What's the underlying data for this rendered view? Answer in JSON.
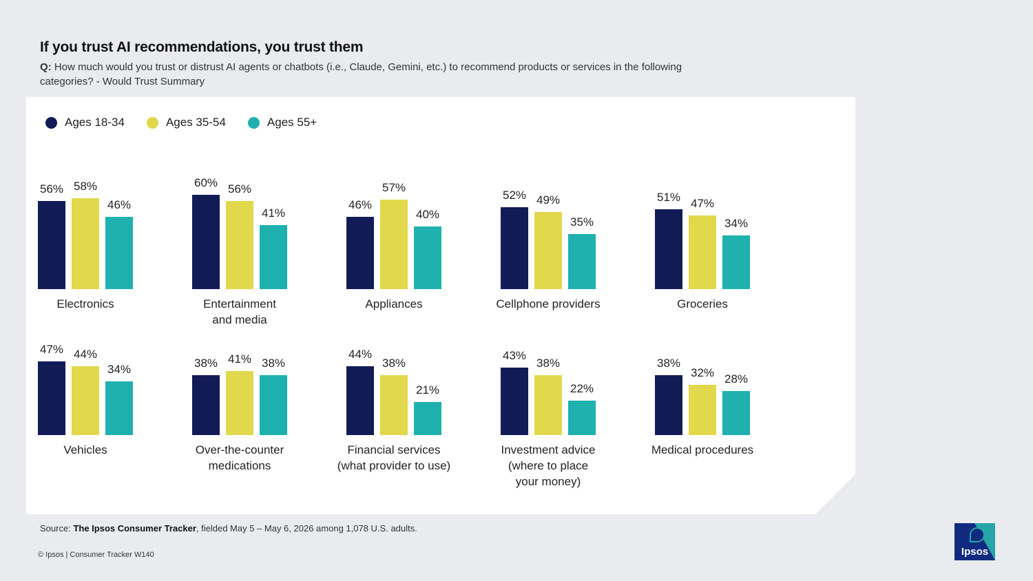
{
  "header": {
    "title": "If you trust AI recommendations, you trust them",
    "question_prefix": "Q:",
    "question_text": "How much would you trust or distrust AI agents or chatbots (i.e., Claude, Gemini, etc.) to recommend products or services in the following categories? - Would Trust Summary"
  },
  "colors": {
    "s1": "#131b57",
    "s2": "#e1d84b",
    "s3": "#1eb1ae"
  },
  "chart_data": {
    "type": "bar",
    "value_suffix": "%",
    "ylim": [
      0,
      60
    ],
    "legend_position": "top-left",
    "series": [
      {
        "name": "Ages 18-34",
        "color": "#131b57"
      },
      {
        "name": "Ages 35-54",
        "color": "#e1d84b"
      },
      {
        "name": "Ages 55+",
        "color": "#1eb1ae"
      }
    ],
    "categories": [
      {
        "label": "Electronics",
        "values": [
          56,
          58,
          46
        ]
      },
      {
        "label": "Entertainment\nand media",
        "values": [
          60,
          56,
          41
        ]
      },
      {
        "label": "Appliances",
        "values": [
          46,
          57,
          40
        ]
      },
      {
        "label": "Cellphone providers",
        "values": [
          52,
          49,
          35
        ]
      },
      {
        "label": "Groceries",
        "values": [
          51,
          47,
          34
        ]
      },
      {
        "label": "Vehicles",
        "values": [
          47,
          44,
          34
        ]
      },
      {
        "label": "Over-the-counter\nmedications",
        "values": [
          38,
          41,
          38
        ]
      },
      {
        "label": "Financial services\n(what provider to use)",
        "values": [
          44,
          38,
          21
        ]
      },
      {
        "label": "Investment advice\n(where to place\nyour money)",
        "values": [
          43,
          38,
          22
        ]
      },
      {
        "label": "Medical procedures",
        "values": [
          38,
          32,
          28
        ]
      }
    ]
  },
  "footer": {
    "source_prefix": "Source:",
    "source_name": "The Ipsos Consumer Tracker",
    "source_rest": ", fielded May 5 – May 6, 2026 among 1,078 U.S. adults.",
    "copyright": "© Ipsos | Consumer Tracker W140",
    "logo_text": "Ipsos"
  }
}
